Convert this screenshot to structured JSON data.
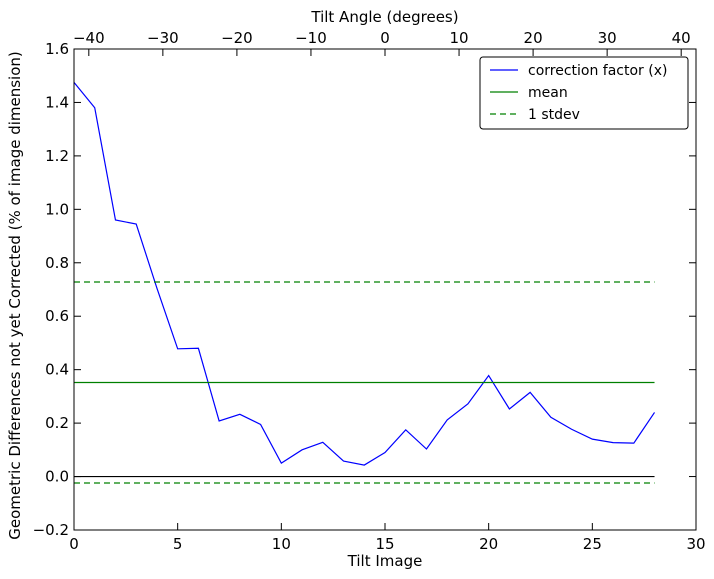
{
  "chart_data": {
    "type": "line",
    "xlabel": "Tilt Image",
    "ylabel": "Geometric Differences not yet Corrected (% of image dimension)",
    "x2label": "Tilt Angle (degrees)",
    "xlim": [
      0,
      30
    ],
    "ylim": [
      -0.2,
      1.6
    ],
    "x2lim": [
      -42,
      42
    ],
    "xticks": [
      0,
      5,
      10,
      15,
      20,
      25,
      30
    ],
    "xtick_labels": [
      "0",
      "5",
      "10",
      "15",
      "20",
      "25",
      "30"
    ],
    "yticks": [
      -0.2,
      0.0,
      0.2,
      0.4,
      0.6,
      0.8,
      1.0,
      1.2,
      1.4,
      1.6
    ],
    "ytick_labels": [
      "−0.2",
      "0.0",
      "0.2",
      "0.4",
      "0.6",
      "0.8",
      "1.0",
      "1.2",
      "1.4",
      "1.6"
    ],
    "x2ticks": [
      -40,
      -30,
      -20,
      -10,
      0,
      10,
      20,
      30,
      40
    ],
    "x2tick_labels": [
      "−40",
      "−30",
      "−20",
      "−10",
      "0",
      "10",
      "20",
      "30",
      "40"
    ],
    "grid": false,
    "legend_position": "top-right",
    "series": [
      {
        "name": "correction factor (x)",
        "color": "#0000ff",
        "style": "solid",
        "x": [
          0,
          1,
          2,
          3,
          4,
          5,
          6,
          7,
          8,
          9,
          10,
          11,
          12,
          13,
          14,
          15,
          16,
          17,
          18,
          19,
          20,
          21,
          22,
          23,
          24,
          25,
          26,
          27,
          28
        ],
        "y": [
          1.475,
          1.38,
          0.96,
          0.945,
          0.705,
          0.478,
          0.48,
          0.208,
          0.233,
          0.195,
          0.05,
          0.1,
          0.128,
          0.058,
          0.043,
          0.09,
          0.175,
          0.103,
          0.212,
          0.272,
          0.378,
          0.253,
          0.315,
          0.222,
          0.177,
          0.14,
          0.127,
          0.125,
          0.24
        ]
      },
      {
        "name": "mean",
        "color": "#008000",
        "style": "solid",
        "x": [
          0,
          28
        ],
        "y": [
          0.352,
          0.352
        ]
      },
      {
        "name": "1 stdev",
        "color": "#008000",
        "style": "dashed",
        "x": [
          0,
          28
        ],
        "y": [
          0.728,
          0.728
        ]
      },
      {
        "name": "",
        "color": "#008000",
        "style": "dashed",
        "x": [
          0,
          28
        ],
        "y": [
          -0.024,
          -0.024
        ]
      },
      {
        "name": "",
        "color": "#000000",
        "style": "solid",
        "x": [
          0,
          28
        ],
        "y": [
          0.0,
          0.0
        ]
      }
    ]
  }
}
